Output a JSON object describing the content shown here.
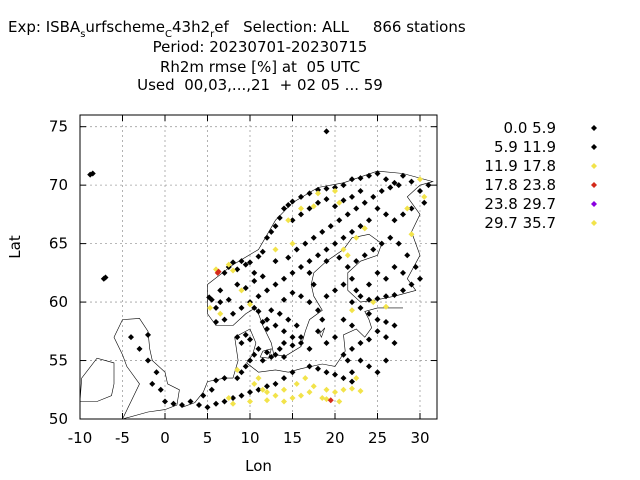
{
  "header": {
    "line1_pre": "Exp: ISBA",
    "line1_sub1": "s",
    "line1_mid1": "urfscheme",
    "line1_sub2": "C",
    "line1_mid2": "43h2",
    "line1_sub3": "r",
    "line1_post": "ef   Selection: ALL     866 stations",
    "line2": "Period: 20230701-20230715",
    "line3": "Rh2m rmse [%] at  05 UTC",
    "line4": "Used  00,03,...,21  + 02 05 ... 59"
  },
  "chart_data": {
    "type": "scatter",
    "xlabel": "Lon",
    "ylabel": "Lat",
    "xlim": [
      -10,
      32
    ],
    "ylim": [
      50,
      76
    ],
    "x_ticks": [
      "-10",
      "-5",
      "0",
      "5",
      "10",
      "15",
      "20",
      "25",
      "30"
    ],
    "x_tick_values": [
      -10,
      -5,
      0,
      5,
      10,
      15,
      20,
      25,
      30
    ],
    "y_ticks": [
      "50",
      "55",
      "60",
      "65",
      "70",
      "75"
    ],
    "y_tick_values": [
      50,
      55,
      60,
      65,
      70,
      75
    ],
    "grid": true,
    "legend_placement": "right",
    "series": [
      {
        "name": "0.0 5.9",
        "color": "#000000",
        "points": [
          [
            19,
            74.6
          ],
          [
            -8.5,
            71
          ],
          [
            -8.8,
            70.9
          ],
          [
            -7.2,
            62
          ],
          [
            -7,
            62.1
          ]
        ]
      },
      {
        "name": "5.9 11.9",
        "color": "#000000",
        "points": [
          [
            5.2,
            60.4
          ],
          [
            5.5,
            60.2
          ],
          [
            6,
            59.5
          ],
          [
            6.5,
            61
          ],
          [
            7,
            62.5
          ],
          [
            7.5,
            63
          ],
          [
            8,
            63.4
          ],
          [
            8.5,
            62.8
          ],
          [
            9,
            63.5
          ],
          [
            9.5,
            63.2
          ],
          [
            10,
            63.4
          ],
          [
            10.5,
            62.5
          ],
          [
            11,
            63.9
          ],
          [
            11.5,
            64.3
          ],
          [
            12,
            65.5
          ],
          [
            12.5,
            66
          ],
          [
            13,
            66.5
          ],
          [
            13.5,
            67.2
          ],
          [
            14,
            68
          ],
          [
            14.5,
            68.3
          ],
          [
            15,
            68.6
          ],
          [
            16,
            69
          ],
          [
            17,
            69.3
          ],
          [
            18,
            69.6
          ],
          [
            19,
            69.7
          ],
          [
            20,
            69.8
          ],
          [
            21,
            70
          ],
          [
            22,
            70.5
          ],
          [
            23,
            70.6
          ],
          [
            24,
            70.8
          ],
          [
            25,
            71
          ],
          [
            26,
            70.5
          ],
          [
            27,
            70.2
          ],
          [
            28,
            70.8
          ],
          [
            29,
            70.3
          ],
          [
            30,
            69.5
          ],
          [
            31,
            70
          ],
          [
            30.5,
            68.5
          ],
          [
            29,
            68
          ],
          [
            28,
            67.5
          ],
          [
            27,
            67
          ],
          [
            26,
            67.5
          ],
          [
            25,
            68
          ],
          [
            24,
            67
          ],
          [
            23,
            66.5
          ],
          [
            22,
            66
          ],
          [
            21,
            65.5
          ],
          [
            20,
            65
          ],
          [
            19,
            64.5
          ],
          [
            18,
            64
          ],
          [
            17,
            63.5
          ],
          [
            16,
            63
          ],
          [
            15,
            62.5
          ],
          [
            14,
            62
          ],
          [
            13,
            61.5
          ],
          [
            12,
            61
          ],
          [
            11,
            60.5
          ],
          [
            10,
            60
          ],
          [
            9,
            59.5
          ],
          [
            8,
            59
          ],
          [
            7,
            58.5
          ],
          [
            6,
            58.3
          ],
          [
            10.5,
            59.5
          ],
          [
            11,
            59.2
          ],
          [
            12,
            58.5
          ],
          [
            13,
            58
          ],
          [
            14,
            57.5
          ],
          [
            15,
            57
          ],
          [
            16,
            56.5
          ],
          [
            17,
            56
          ],
          [
            18,
            57.5
          ],
          [
            18.5,
            58.5
          ],
          [
            18,
            59.3
          ],
          [
            17,
            60
          ],
          [
            16,
            60.5
          ],
          [
            15,
            60.8
          ],
          [
            14,
            60.2
          ],
          [
            17.5,
            61.5
          ],
          [
            17,
            62.5
          ],
          [
            19,
            63.5
          ],
          [
            20.5,
            63.8
          ],
          [
            21.5,
            63
          ],
          [
            22,
            62
          ],
          [
            22.5,
            61
          ],
          [
            23,
            60.5
          ],
          [
            24,
            60.2
          ],
          [
            25,
            60.3
          ],
          [
            26,
            60.5
          ],
          [
            27,
            60.6
          ],
          [
            28,
            61
          ],
          [
            29,
            61.5
          ],
          [
            30,
            62
          ],
          [
            29.5,
            63
          ],
          [
            28.5,
            64
          ],
          [
            27.5,
            65
          ],
          [
            26.5,
            65.5
          ],
          [
            25.5,
            65
          ],
          [
            24.5,
            64.5
          ],
          [
            23.5,
            64
          ],
          [
            22.5,
            63.5
          ],
          [
            25,
            62.5
          ],
          [
            26,
            62
          ],
          [
            27,
            63
          ],
          [
            28,
            62.5
          ],
          [
            24,
            61.5
          ],
          [
            21,
            61.5
          ],
          [
            20,
            61
          ],
          [
            19,
            60.5
          ],
          [
            22,
            60
          ],
          [
            23,
            59.5
          ],
          [
            24,
            59
          ],
          [
            25,
            58.5
          ],
          [
            26,
            58.3
          ],
          [
            27,
            58
          ],
          [
            25,
            57.5
          ],
          [
            26,
            57
          ],
          [
            27,
            56.5
          ],
          [
            24,
            56.8
          ],
          [
            23,
            56.5
          ],
          [
            22,
            56
          ],
          [
            21,
            55.5
          ],
          [
            23,
            55
          ],
          [
            24,
            54.5
          ],
          [
            25,
            54
          ],
          [
            26,
            55
          ],
          [
            22,
            54
          ],
          [
            21.5,
            55
          ],
          [
            17,
            54.5
          ],
          [
            18,
            54.3
          ],
          [
            19,
            54
          ],
          [
            20,
            53.8
          ],
          [
            21,
            53.5
          ],
          [
            22,
            53.2
          ],
          [
            15,
            54
          ],
          [
            14,
            53.5
          ],
          [
            13,
            53
          ],
          [
            12,
            52.8
          ],
          [
            11,
            52.5
          ],
          [
            10,
            52.3
          ],
          [
            9,
            52
          ],
          [
            8,
            51.8
          ],
          [
            7,
            51.5
          ],
          [
            6,
            51.3
          ],
          [
            5,
            51
          ],
          [
            4,
            51.2
          ],
          [
            3,
            51.5
          ],
          [
            8.5,
            53.5
          ],
          [
            9,
            54
          ],
          [
            9.5,
            54.5
          ],
          [
            10,
            55
          ],
          [
            10.5,
            55.5
          ],
          [
            11,
            56
          ],
          [
            9,
            56.5
          ],
          [
            8.5,
            57
          ],
          [
            9.5,
            57.2
          ],
          [
            10,
            56.8
          ],
          [
            11.5,
            55
          ],
          [
            12,
            55.7
          ],
          [
            12.5,
            55.3
          ],
          [
            13,
            55.5
          ],
          [
            14,
            55.3
          ],
          [
            13.5,
            56
          ],
          [
            14,
            56.5
          ],
          [
            15,
            56.3
          ],
          [
            16,
            57
          ],
          [
            15.5,
            58
          ],
          [
            14.5,
            58.5
          ],
          [
            13.5,
            59
          ],
          [
            12.5,
            59.3
          ],
          [
            11.5,
            58.3
          ],
          [
            12,
            57.7
          ],
          [
            -1.5,
            53
          ],
          [
            -1,
            54
          ],
          [
            -2,
            55
          ],
          [
            -3,
            56
          ],
          [
            -4,
            57
          ],
          [
            -2,
            57.2
          ],
          [
            0,
            51.5
          ],
          [
            1,
            51.3
          ],
          [
            2,
            51.2
          ],
          [
            -0.5,
            52.5
          ],
          [
            6,
            53.3
          ],
          [
            7,
            53.5
          ],
          [
            5.5,
            52.5
          ],
          [
            4.5,
            52
          ],
          [
            20,
            57
          ],
          [
            19,
            56.5
          ],
          [
            21,
            58.5
          ],
          [
            22,
            58
          ],
          [
            6.5,
            60
          ],
          [
            7.5,
            60.2
          ],
          [
            8.5,
            61.5
          ],
          [
            9.5,
            61.2
          ],
          [
            10.5,
            61.8
          ],
          [
            11.5,
            62.2
          ],
          [
            13,
            63.5
          ],
          [
            14.5,
            63.8
          ],
          [
            15.5,
            64.5
          ],
          [
            16.5,
            65
          ],
          [
            17.5,
            65.5
          ],
          [
            18.5,
            66
          ],
          [
            19.5,
            66.5
          ],
          [
            20.5,
            67
          ],
          [
            21.5,
            67.5
          ],
          [
            22.5,
            68
          ],
          [
            23.5,
            68.5
          ],
          [
            24.5,
            69
          ],
          [
            25.5,
            69.5
          ],
          [
            26.5,
            69.8
          ],
          [
            27.5,
            70
          ],
          [
            15,
            67
          ],
          [
            16,
            67.5
          ],
          [
            17,
            68
          ],
          [
            18,
            68.5
          ],
          [
            19,
            68.8
          ],
          [
            20,
            68.2
          ],
          [
            21,
            68.7
          ],
          [
            22,
            69
          ],
          [
            23,
            69.5
          ]
        ]
      },
      {
        "name": "11.9 17.8",
        "color": "#f2e34a",
        "points": [
          [
            18,
            69.3
          ],
          [
            20,
            69.5
          ],
          [
            20.5,
            68.5
          ],
          [
            17.5,
            68.2
          ],
          [
            16,
            68
          ],
          [
            14.5,
            67
          ],
          [
            13,
            64.5
          ],
          [
            15,
            65
          ],
          [
            21,
            64.5
          ],
          [
            21.5,
            64
          ],
          [
            22.5,
            65.5
          ],
          [
            23.5,
            66.3
          ],
          [
            28.5,
            68
          ],
          [
            30,
            70.5
          ],
          [
            30.5,
            69
          ],
          [
            29,
            65.8
          ],
          [
            6,
            62.8
          ],
          [
            7.5,
            63.2
          ],
          [
            8,
            62.7
          ],
          [
            9,
            61
          ],
          [
            10,
            59.8
          ],
          [
            5.3,
            59.5
          ],
          [
            6.5,
            59
          ],
          [
            24.5,
            60
          ],
          [
            22,
            59.3
          ],
          [
            26,
            59.6
          ],
          [
            11,
            53.5
          ],
          [
            10.5,
            53
          ],
          [
            11.5,
            52.5
          ],
          [
            12,
            52.3
          ],
          [
            13,
            52
          ],
          [
            14,
            52.5
          ],
          [
            15.5,
            53
          ],
          [
            16.5,
            53.5
          ],
          [
            17.5,
            52.8
          ],
          [
            19,
            52.5
          ],
          [
            20,
            52.3
          ],
          [
            21,
            52.5
          ],
          [
            22,
            52.6
          ],
          [
            23,
            52.4
          ],
          [
            22.5,
            53.5
          ],
          [
            18.5,
            51.8
          ],
          [
            19,
            51.7
          ],
          [
            20.5,
            51.5
          ],
          [
            17,
            52.3
          ],
          [
            16,
            52
          ],
          [
            15,
            51.8
          ],
          [
            14,
            51.5
          ],
          [
            12,
            51.6
          ],
          [
            10,
            51.5
          ],
          [
            8,
            51.3
          ],
          [
            7.5,
            51.8
          ],
          [
            8.5,
            54.2
          ]
        ]
      },
      {
        "name": "17.8 23.8",
        "color": "#d42a1a",
        "points": [
          [
            6.2,
            62.5
          ],
          [
            6.3,
            62.6
          ],
          [
            19.5,
            51.6
          ]
        ]
      },
      {
        "name": "23.8 29.7",
        "color": "#8a00e0",
        "points": []
      },
      {
        "name": "29.7 35.7",
        "color": "#f2e34a",
        "points": []
      }
    ]
  }
}
